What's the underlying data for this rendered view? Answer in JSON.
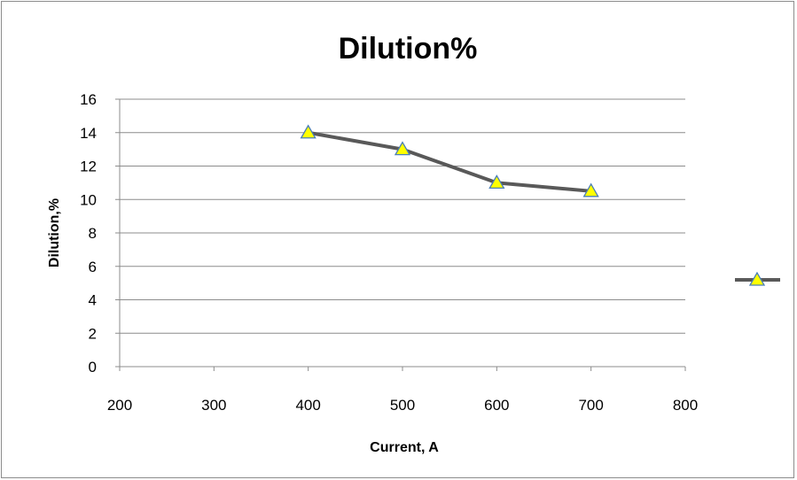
{
  "chart_data": {
    "type": "line",
    "title": "Dilution%",
    "xlabel": "Current, A",
    "ylabel": "Dilution,%",
    "xlim": [
      200,
      800
    ],
    "ylim": [
      0,
      16
    ],
    "x_ticks": [
      "200",
      "300",
      "400",
      "500",
      "600",
      "700",
      "800"
    ],
    "y_ticks": [
      "0",
      "2",
      "4",
      "6",
      "8",
      "10",
      "12",
      "14",
      "16"
    ],
    "grid": "horizontal",
    "legend": "right",
    "series": [
      {
        "x": [
          400,
          500,
          600,
          700
        ],
        "y": [
          14,
          13,
          11,
          10.5
        ],
        "line_color": "#595959",
        "marker": "triangle",
        "marker_fill": "#ffff00",
        "marker_stroke": "#4a7eb8"
      }
    ]
  }
}
